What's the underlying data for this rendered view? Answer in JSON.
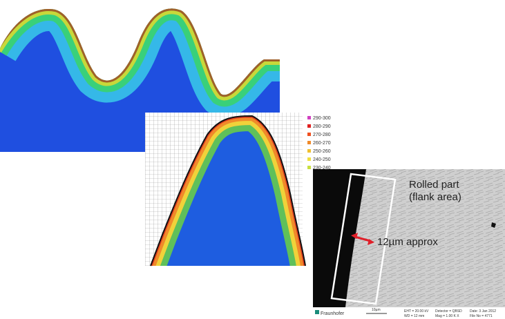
{
  "hardness_map": {
    "legend": [
      "290-300",
      "280-290",
      "270-280",
      "260-270",
      "250-260",
      "240-250",
      "230-240"
    ]
  },
  "sem_image": {
    "annotations": [
      "Rolled part",
      "(flank area)",
      "12µm approx"
    ],
    "scale_bar": "10µm",
    "logo": "Fraunhofer",
    "footer": [
      "EHT = 20.00 kV",
      "WD = 12 mm",
      "Detector = QBSD",
      "Mag = 1.00 K X",
      "Date: 3 Jan 2012",
      "File No = 4771"
    ]
  }
}
